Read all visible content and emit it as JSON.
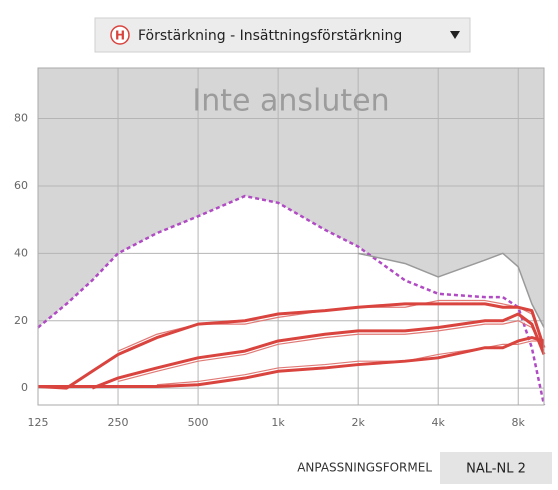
{
  "dropdown": {
    "icon": "H",
    "label": "Förstärkning - Insättningsförstärkning"
  },
  "chart_data": {
    "type": "line",
    "annotation": "Inte ansluten",
    "log_x": true,
    "grid": true,
    "x": [
      125,
      160,
      200,
      250,
      350,
      500,
      750,
      1000,
      1500,
      2000,
      3000,
      4000,
      6000,
      7000,
      8000,
      9000,
      10000
    ],
    "xlim": [
      125,
      10000
    ],
    "xticks": [
      125,
      250,
      500,
      {
        "value": 1000,
        "label": "1k"
      },
      {
        "value": 2000,
        "label": "2k"
      },
      {
        "value": 4000,
        "label": "4k"
      },
      {
        "value": 8000,
        "label": "8k"
      }
    ],
    "ylim": [
      -5,
      95
    ],
    "yticks": [
      0,
      20,
      40,
      60,
      80
    ],
    "series": [
      {
        "color": "#b04bc4",
        "dashed": true,
        "width": 2.5,
        "fill_below": "#ffffff",
        "values": [
          18,
          25,
          32,
          40,
          46,
          51,
          57,
          55,
          47,
          42,
          32,
          28,
          27,
          27,
          24,
          12,
          -5
        ]
      },
      {
        "color": "#9a9a9a",
        "width": 1.5,
        "fill_below": "#ffffff",
        "values": [
          null,
          null,
          null,
          null,
          null,
          null,
          null,
          null,
          null,
          40,
          37,
          33,
          38,
          40,
          36,
          25,
          18
        ]
      },
      {
        "color": "#e07a76",
        "width": 1.2,
        "values": [
          null,
          null,
          null,
          11,
          16,
          19,
          19,
          21,
          23,
          24,
          24,
          26,
          26,
          25,
          24,
          22,
          13
        ]
      },
      {
        "color": "#e07a76",
        "width": 1.2,
        "values": [
          null,
          null,
          null,
          2,
          5,
          8,
          10,
          13,
          15,
          16,
          16,
          17,
          19,
          19,
          20,
          18,
          11
        ]
      },
      {
        "color": "#e07a76",
        "width": 1.2,
        "values": [
          null,
          null,
          null,
          null,
          1,
          2,
          4,
          6,
          7,
          8,
          8,
          10,
          12,
          13,
          13,
          14,
          14
        ]
      },
      {
        "color": "#d9443f",
        "width": 3,
        "values": [
          0.5,
          0,
          5,
          10,
          15,
          19,
          20,
          22,
          23,
          24,
          25,
          25,
          25,
          24,
          24,
          23,
          12
        ]
      },
      {
        "color": "#d9443f",
        "width": 3,
        "values": [
          null,
          null,
          0,
          3,
          6,
          9,
          11,
          14,
          16,
          17,
          17,
          18,
          20,
          20,
          22,
          19,
          10
        ]
      },
      {
        "color": "#d9443f",
        "width": 3,
        "values": [
          0.5,
          0.5,
          0.5,
          0.5,
          0.5,
          1,
          3,
          5,
          6,
          7,
          8,
          9,
          12,
          12,
          14,
          15,
          14
        ]
      }
    ]
  },
  "footer": {
    "label": "ANPASSNINGSFORMEL",
    "value": "NAL-NL 2"
  }
}
